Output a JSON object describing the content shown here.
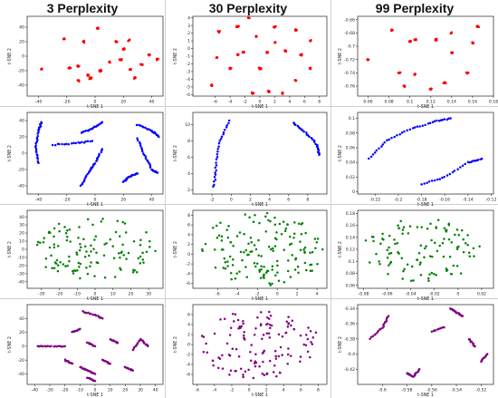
{
  "column_titles": [
    "3 Perplexity",
    "30 Perplexity",
    "99 Perplexity"
  ],
  "chart_data": [
    {
      "type": "scatter",
      "row": 0,
      "col": 0,
      "color": "#ff0000",
      "xlabel": "t-SNE 1",
      "ylabel": "t-SNE 2",
      "xlim": [
        -48,
        48
      ],
      "ylim": [
        -55,
        55
      ],
      "xticks": [
        -40,
        -20,
        0,
        20,
        40
      ],
      "yticks": [
        -40,
        -20,
        0,
        20,
        40
      ],
      "clusters": [
        [
          -38,
          -18
        ],
        [
          -22,
          24
        ],
        [
          -8,
          20
        ],
        [
          2,
          38
        ],
        [
          -12,
          -14
        ],
        [
          -3,
          -30
        ],
        [
          -12,
          -34
        ],
        [
          -5,
          -26
        ],
        [
          10,
          -8
        ],
        [
          4,
          -20
        ],
        [
          18,
          -5
        ],
        [
          25,
          -18
        ],
        [
          33,
          -12
        ],
        [
          15,
          20
        ],
        [
          20,
          10
        ],
        [
          38,
          2
        ],
        [
          44,
          -4
        ],
        [
          28,
          -30
        ],
        [
          -18,
          -16
        ],
        [
          24,
          22
        ]
      ]
    },
    {
      "type": "scatter",
      "row": 0,
      "col": 1,
      "color": "#ff0000",
      "xlabel": "t-SNE 1",
      "ylabel": "t-SNE 2",
      "xlim": [
        -9,
        9
      ],
      "ylim": [
        -6.2,
        4.2
      ],
      "xticks": [
        -6,
        -4,
        -2,
        0,
        2,
        4,
        6,
        8
      ],
      "yticks": [
        -6,
        -5,
        -4,
        -3,
        -2,
        -1,
        0,
        1,
        2,
        3,
        4
      ],
      "clusters": [
        [
          -5.5,
          2.2
        ],
        [
          -3,
          2.9
        ],
        [
          -1.5,
          4
        ],
        [
          0,
          -2.6
        ],
        [
          -0.5,
          1.6
        ],
        [
          2,
          2.8
        ],
        [
          -4,
          -2.6
        ],
        [
          -3,
          -0.8
        ],
        [
          -2.2,
          -0.5
        ],
        [
          -5.8,
          -1.2
        ],
        [
          -1,
          -5.8
        ],
        [
          1.2,
          -5.6
        ],
        [
          3,
          -5.8
        ],
        [
          3.5,
          -0.3
        ],
        [
          5.5,
          -0.8
        ],
        [
          6.8,
          1
        ],
        [
          6.8,
          -2.6
        ],
        [
          4.8,
          -4.2
        ],
        [
          -6.5,
          -4.8
        ],
        [
          4.8,
          2.4
        ],
        [
          2,
          0.8
        ],
        [
          1,
          -0.5
        ]
      ]
    },
    {
      "type": "scatter",
      "row": 0,
      "col": 2,
      "color": "#ff0000",
      "xlabel": "t-SNE 1",
      "ylabel": "t-SNE 2",
      "xlim": [
        0.05,
        0.18
      ],
      "ylim": [
        -0.775,
        -0.655
      ],
      "xticks": [
        0.06,
        0.08,
        0.1,
        0.12,
        0.14,
        0.16,
        0.18
      ],
      "yticks": [
        -0.76,
        -0.74,
        -0.72,
        -0.7,
        -0.68,
        -0.66
      ],
      "clusters": [
        [
          0.083,
          -0.676
        ],
        [
          0.1,
          -0.693
        ],
        [
          0.105,
          -0.69
        ],
        [
          0.125,
          -0.69
        ],
        [
          0.14,
          -0.68
        ],
        [
          0.165,
          -0.67
        ],
        [
          0.16,
          -0.695
        ],
        [
          0.09,
          -0.74
        ],
        [
          0.105,
          -0.742
        ],
        [
          0.155,
          -0.74
        ],
        [
          0.095,
          -0.76
        ],
        [
          0.12,
          -0.765
        ],
        [
          0.133,
          -0.755
        ],
        [
          0.14,
          -0.71
        ],
        [
          0.06,
          -0.72
        ]
      ]
    },
    {
      "type": "scatter",
      "row": 1,
      "col": 0,
      "color": "#0000ff",
      "xlabel": "t-SNE 1",
      "ylabel": "t-SNE 2",
      "xlim": [
        -48,
        48
      ],
      "ylim": [
        -50,
        50
      ],
      "xticks": [
        -40,
        -20,
        0,
        20,
        40
      ],
      "yticks": [
        -40,
        -20,
        0,
        20,
        40
      ],
      "curves": [
        [
          [
            -40,
            -12
          ],
          [
            -42,
            8
          ],
          [
            -40,
            28
          ],
          [
            -38,
            38
          ]
        ],
        [
          [
            -30,
            10
          ],
          [
            -15,
            12
          ],
          [
            -2,
            15
          ]
        ],
        [
          [
            -10,
            -40
          ],
          [
            -4,
            -22
          ],
          [
            0,
            -12
          ],
          [
            5,
            5
          ]
        ],
        [
          [
            -10,
            25
          ],
          [
            -2,
            30
          ],
          [
            5,
            38
          ]
        ],
        [
          [
            30,
            18
          ],
          [
            35,
            -2
          ],
          [
            40,
            -20
          ],
          [
            44,
            -24
          ]
        ],
        [
          [
            30,
            35
          ],
          [
            40,
            28
          ],
          [
            45,
            20
          ]
        ],
        [
          [
            20,
            -35
          ],
          [
            25,
            -28
          ],
          [
            30,
            -25
          ]
        ]
      ]
    },
    {
      "type": "scatter",
      "row": 1,
      "col": 1,
      "color": "#0000ff",
      "xlabel": "t-SNE 1",
      "ylabel": "t-SNE 2",
      "xlim": [
        -4,
        10
      ],
      "ylim": [
        1.5,
        11.5
      ],
      "xticks": [
        -2,
        0,
        2,
        4,
        6,
        8
      ],
      "yticks": [
        2,
        4,
        6,
        8,
        10
      ],
      "curves": [
        [
          [
            -1.8,
            2.4
          ],
          [
            -1.6,
            5
          ],
          [
            -1.2,
            8
          ],
          [
            -0.2,
            10.5
          ]
        ],
        [
          [
            6.5,
            10.2
          ],
          [
            7.8,
            9
          ],
          [
            9,
            7.5
          ],
          [
            9.2,
            6.3
          ]
        ]
      ]
    },
    {
      "type": "scatter",
      "row": 1,
      "col": 2,
      "color": "#0000ff",
      "xlabel": "t-SNE 1",
      "ylabel": "t-SNE 2",
      "xlim": [
        -0.235,
        -0.118
      ],
      "ylim": [
        -0.003,
        0.108
      ],
      "xticks": [
        -0.22,
        -0.2,
        -0.18,
        -0.16,
        -0.14,
        -0.12
      ],
      "yticks": [
        0,
        0.02,
        0.04,
        0.06,
        0.08,
        0.1
      ],
      "curves": [
        [
          [
            -0.225,
            0.045
          ],
          [
            -0.21,
            0.07
          ],
          [
            -0.19,
            0.085
          ],
          [
            -0.17,
            0.095
          ],
          [
            -0.155,
            0.1
          ]
        ],
        [
          [
            -0.18,
            0.01
          ],
          [
            -0.16,
            0.02
          ],
          [
            -0.14,
            0.04
          ],
          [
            -0.128,
            0.045
          ]
        ]
      ]
    },
    {
      "type": "scatter",
      "row": 2,
      "col": 0,
      "color": "#008000",
      "xlabel": "t-SNE 1",
      "ylabel": "t-SNE 2",
      "xlim": [
        -38,
        38
      ],
      "ylim": [
        -48,
        48
      ],
      "xticks": [
        -30,
        -20,
        -10,
        0,
        10,
        20,
        30
      ],
      "yticks": [
        -40,
        -30,
        -20,
        -10,
        0,
        10,
        20,
        30,
        40
      ],
      "cloud": [
        0,
        0,
        34,
        40
      ],
      "n": 120
    },
    {
      "type": "scatter",
      "row": 2,
      "col": 1,
      "color": "#008000",
      "xlabel": "t-SNE 1",
      "ylabel": "t-SNE 2",
      "xlim": [
        -8.5,
        5
      ],
      "ylim": [
        -7,
        9
      ],
      "xticks": [
        -6,
        -4,
        -2,
        0,
        2,
        4
      ],
      "yticks": [
        -6,
        -4,
        -2,
        0,
        2,
        4,
        6,
        8
      ],
      "cloud": [
        -1.5,
        1,
        6.2,
        7.5
      ],
      "n": 150
    },
    {
      "type": "scatter",
      "row": 2,
      "col": 2,
      "color": "#008000",
      "xlabel": "t-SNE 1",
      "ylabel": "t-SNE 2",
      "xlim": [
        -0.085,
        0.03
      ],
      "ylim": [
        0.055,
        0.185
      ],
      "xticks": [
        -0.08,
        -0.06,
        -0.04,
        -0.02,
        0,
        0.02
      ],
      "yticks": [
        0.06,
        0.08,
        0.1,
        0.12,
        0.14,
        0.16,
        0.18
      ],
      "cloud": [
        -0.03,
        0.12,
        0.05,
        0.055
      ],
      "n": 110
    },
    {
      "type": "scatter",
      "row": 3,
      "col": 0,
      "color": "#800080",
      "xlabel": "t-SNE 1",
      "ylabel": "t-SNE 2",
      "xlim": [
        -45,
        45
      ],
      "ylim": [
        -55,
        60
      ],
      "xticks": [
        -40,
        -30,
        -20,
        -10,
        0,
        10,
        20,
        30,
        40
      ],
      "yticks": [
        -40,
        -20,
        0,
        20,
        40
      ],
      "curves": [
        [
          [
            -38,
            0
          ],
          [
            -30,
            0
          ],
          [
            -20,
            0
          ]
        ],
        [
          [
            -8,
            50
          ],
          [
            0,
            45
          ],
          [
            5,
            40
          ]
        ],
        [
          [
            -15,
            20
          ],
          [
            -10,
            25
          ]
        ],
        [
          [
            10,
            10
          ],
          [
            15,
            5
          ]
        ],
        [
          [
            25,
            -5
          ],
          [
            30,
            10
          ],
          [
            35,
            0
          ]
        ],
        [
          [
            -10,
            -30
          ],
          [
            -5,
            -35
          ],
          [
            0,
            -40
          ]
        ],
        [
          [
            5,
            -20
          ],
          [
            10,
            -25
          ]
        ],
        [
          [
            20,
            -30
          ],
          [
            25,
            -35
          ]
        ],
        [
          [
            -5,
            -45
          ],
          [
            0,
            -50
          ]
        ],
        [
          [
            -20,
            -20
          ],
          [
            -15,
            -25
          ]
        ],
        [
          [
            -5,
            5
          ],
          [
            0,
            0
          ]
        ]
      ]
    },
    {
      "type": "scatter",
      "row": 3,
      "col": 1,
      "color": "#800080",
      "xlabel": "t-SNE 1",
      "ylabel": "t-SNE 2",
      "xlim": [
        -6.5,
        9
      ],
      "ylim": [
        -8,
        8
      ],
      "xticks": [
        -6,
        -4,
        -2,
        0,
        2,
        4,
        6,
        8
      ],
      "yticks": [
        -6,
        -4,
        -2,
        0,
        2,
        4,
        6
      ],
      "cloud": [
        1.2,
        0,
        7,
        7
      ],
      "n": 130
    },
    {
      "type": "scatter",
      "row": 3,
      "col": 2,
      "color": "#800080",
      "xlabel": "t-SNE 1",
      "ylabel": "t-SNE 2",
      "xlim": [
        -0.62,
        -0.51
      ],
      "ylim": [
        -0.44,
        -0.335
      ],
      "xticks": [
        -0.6,
        -0.58,
        -0.56,
        -0.54,
        -0.52
      ],
      "yticks": [
        -0.42,
        -0.4,
        -0.38,
        -0.36,
        -0.34
      ],
      "curves": [
        [
          [
            -0.61,
            -0.38
          ],
          [
            -0.6,
            -0.365
          ],
          [
            -0.595,
            -0.35
          ]
        ],
        [
          [
            -0.58,
            -0.425
          ],
          [
            -0.575,
            -0.43
          ],
          [
            -0.57,
            -0.42
          ]
        ],
        [
          [
            -0.545,
            -0.34
          ],
          [
            -0.54,
            -0.345
          ],
          [
            -0.535,
            -0.35
          ]
        ],
        [
          [
            -0.53,
            -0.38
          ],
          [
            -0.525,
            -0.39
          ]
        ],
        [
          [
            -0.52,
            -0.41
          ],
          [
            -0.515,
            -0.4
          ]
        ],
        [
          [
            -0.56,
            -0.37
          ],
          [
            -0.55,
            -0.365
          ]
        ]
      ]
    }
  ]
}
